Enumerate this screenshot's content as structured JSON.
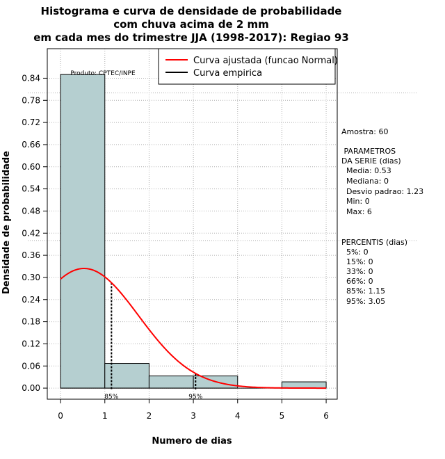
{
  "chart_data": {
    "type": "bar",
    "title_lines": [
      "Histograma e curva de densidade de probabilidade",
      "com chuva acima de 2 mm",
      "em cada mes do trimestre JJA (1998-2017): Regiao 93"
    ],
    "xlabel": "Numero de dias",
    "ylabel": "Densidade de probabilidade",
    "xlim": [
      -0.3,
      6.25
    ],
    "ylim": [
      -0.03,
      0.92
    ],
    "x_ticks": [
      "0",
      "1",
      "2",
      "3",
      "4",
      "5",
      "6"
    ],
    "y_ticks": [
      "0.00",
      "0.06",
      "0.12",
      "0.18",
      "0.24",
      "0.30",
      "0.36",
      "0.42",
      "0.48",
      "0.54",
      "0.60",
      "0.66",
      "0.72",
      "0.78",
      "0.84"
    ],
    "bins": [
      {
        "from": 0,
        "to": 1,
        "density": 0.85
      },
      {
        "from": 1,
        "to": 2,
        "density": 0.067
      },
      {
        "from": 2,
        "to": 3,
        "density": 0.033
      },
      {
        "from": 3,
        "to": 4,
        "density": 0.033
      },
      {
        "from": 4,
        "to": 5,
        "density": 0.0
      },
      {
        "from": 5,
        "to": 6,
        "density": 0.017
      }
    ],
    "normal_fit": {
      "mean": 0.53,
      "sd": 1.23,
      "x_from": 0,
      "x_to": 6
    },
    "percentile_markers": [
      {
        "label": "85%",
        "x": 1.15
      },
      {
        "label": "95%",
        "x": 3.05
      }
    ],
    "reference_lines_y": [
      0.8,
      0.4
    ],
    "legend": [
      {
        "label": "Curva ajustada (funcao Normal)",
        "color": "#ff0000"
      },
      {
        "label": "Curva empirica",
        "color": "#000000"
      }
    ],
    "producer_note": "Produto: CPTEC/INPE"
  },
  "side_panel": {
    "lines": [
      "Amostra: 60",
      " PARAMETROS",
      "DA SERIE (dias)",
      "  Media: 0.53",
      "  Mediana: 0",
      "  Desvio padrao: 1.23",
      "  Min: 0",
      "  Max: 6",
      "PERCENTIS (dias)",
      "  5%: 0",
      "  15%: 0",
      "  33%: 0",
      "  66%: 0",
      "  85%: 1.15",
      "  95%: 3.05"
    ]
  },
  "colors": {
    "bar_fill": "#b5cfd0",
    "curve": "#ff0000",
    "grid": "#b0b0b0"
  }
}
